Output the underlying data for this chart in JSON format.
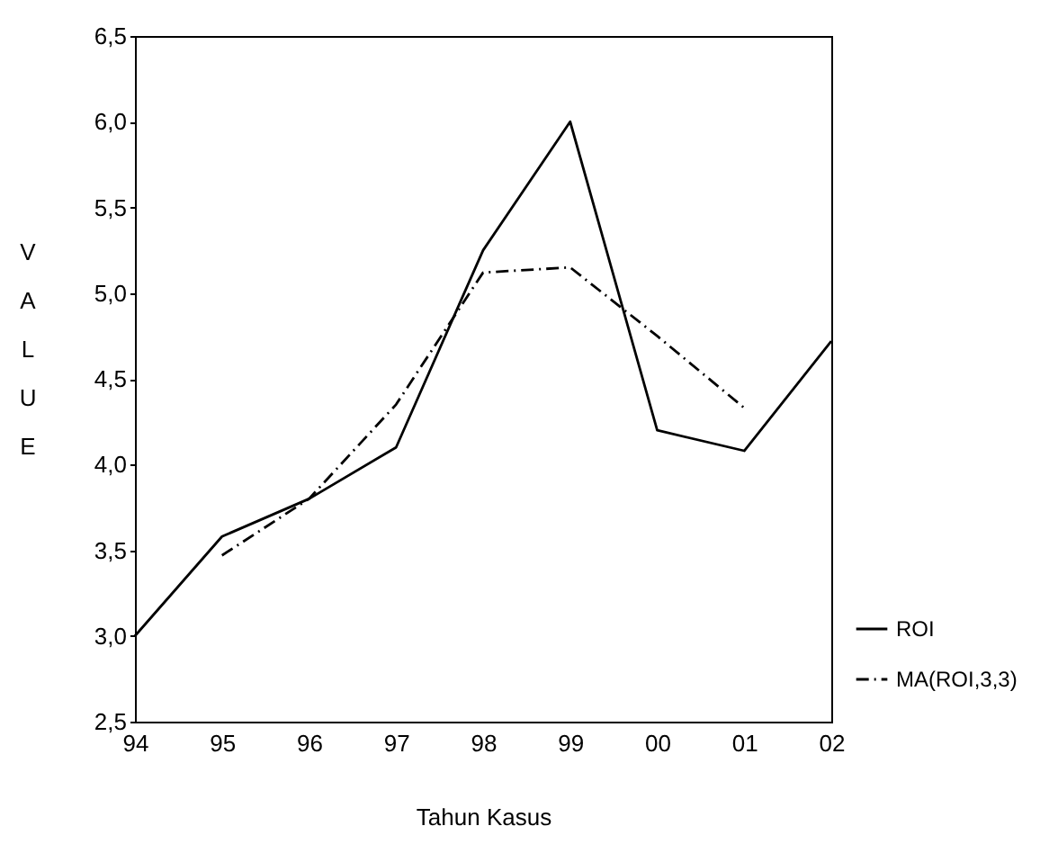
{
  "chart_data": {
    "type": "line",
    "xlabel": "Tahun Kasus",
    "ylabel": "VALUE",
    "categories": [
      "94",
      "95",
      "96",
      "97",
      "98",
      "99",
      "00",
      "01",
      "02"
    ],
    "series": [
      {
        "name": "ROI",
        "color": "#000000",
        "line_style": "solid",
        "values": [
          3.0,
          3.58,
          3.8,
          4.1,
          5.25,
          6.0,
          4.2,
          4.08,
          4.72
        ]
      },
      {
        "name": "MA(ROI,3,3)",
        "color": "#000000",
        "line_style": "dashed",
        "values": [
          null,
          3.47,
          3.8,
          4.35,
          5.12,
          5.15,
          4.75,
          4.33,
          null
        ]
      }
    ],
    "ylim": [
      2.5,
      6.5
    ],
    "yticks": [
      {
        "value": 2.5,
        "label": "2,5"
      },
      {
        "value": 3.0,
        "label": "3,0"
      },
      {
        "value": 3.5,
        "label": "3,5"
      },
      {
        "value": 4.0,
        "label": "4,0"
      },
      {
        "value": 4.5,
        "label": "4,5"
      },
      {
        "value": 5.0,
        "label": "5,0"
      },
      {
        "value": 5.5,
        "label": "5,5"
      },
      {
        "value": 6.0,
        "label": "6,0"
      },
      {
        "value": 6.5,
        "label": "6,5"
      }
    ],
    "grid": false,
    "legend": "bottom right",
    "marker": "none"
  }
}
